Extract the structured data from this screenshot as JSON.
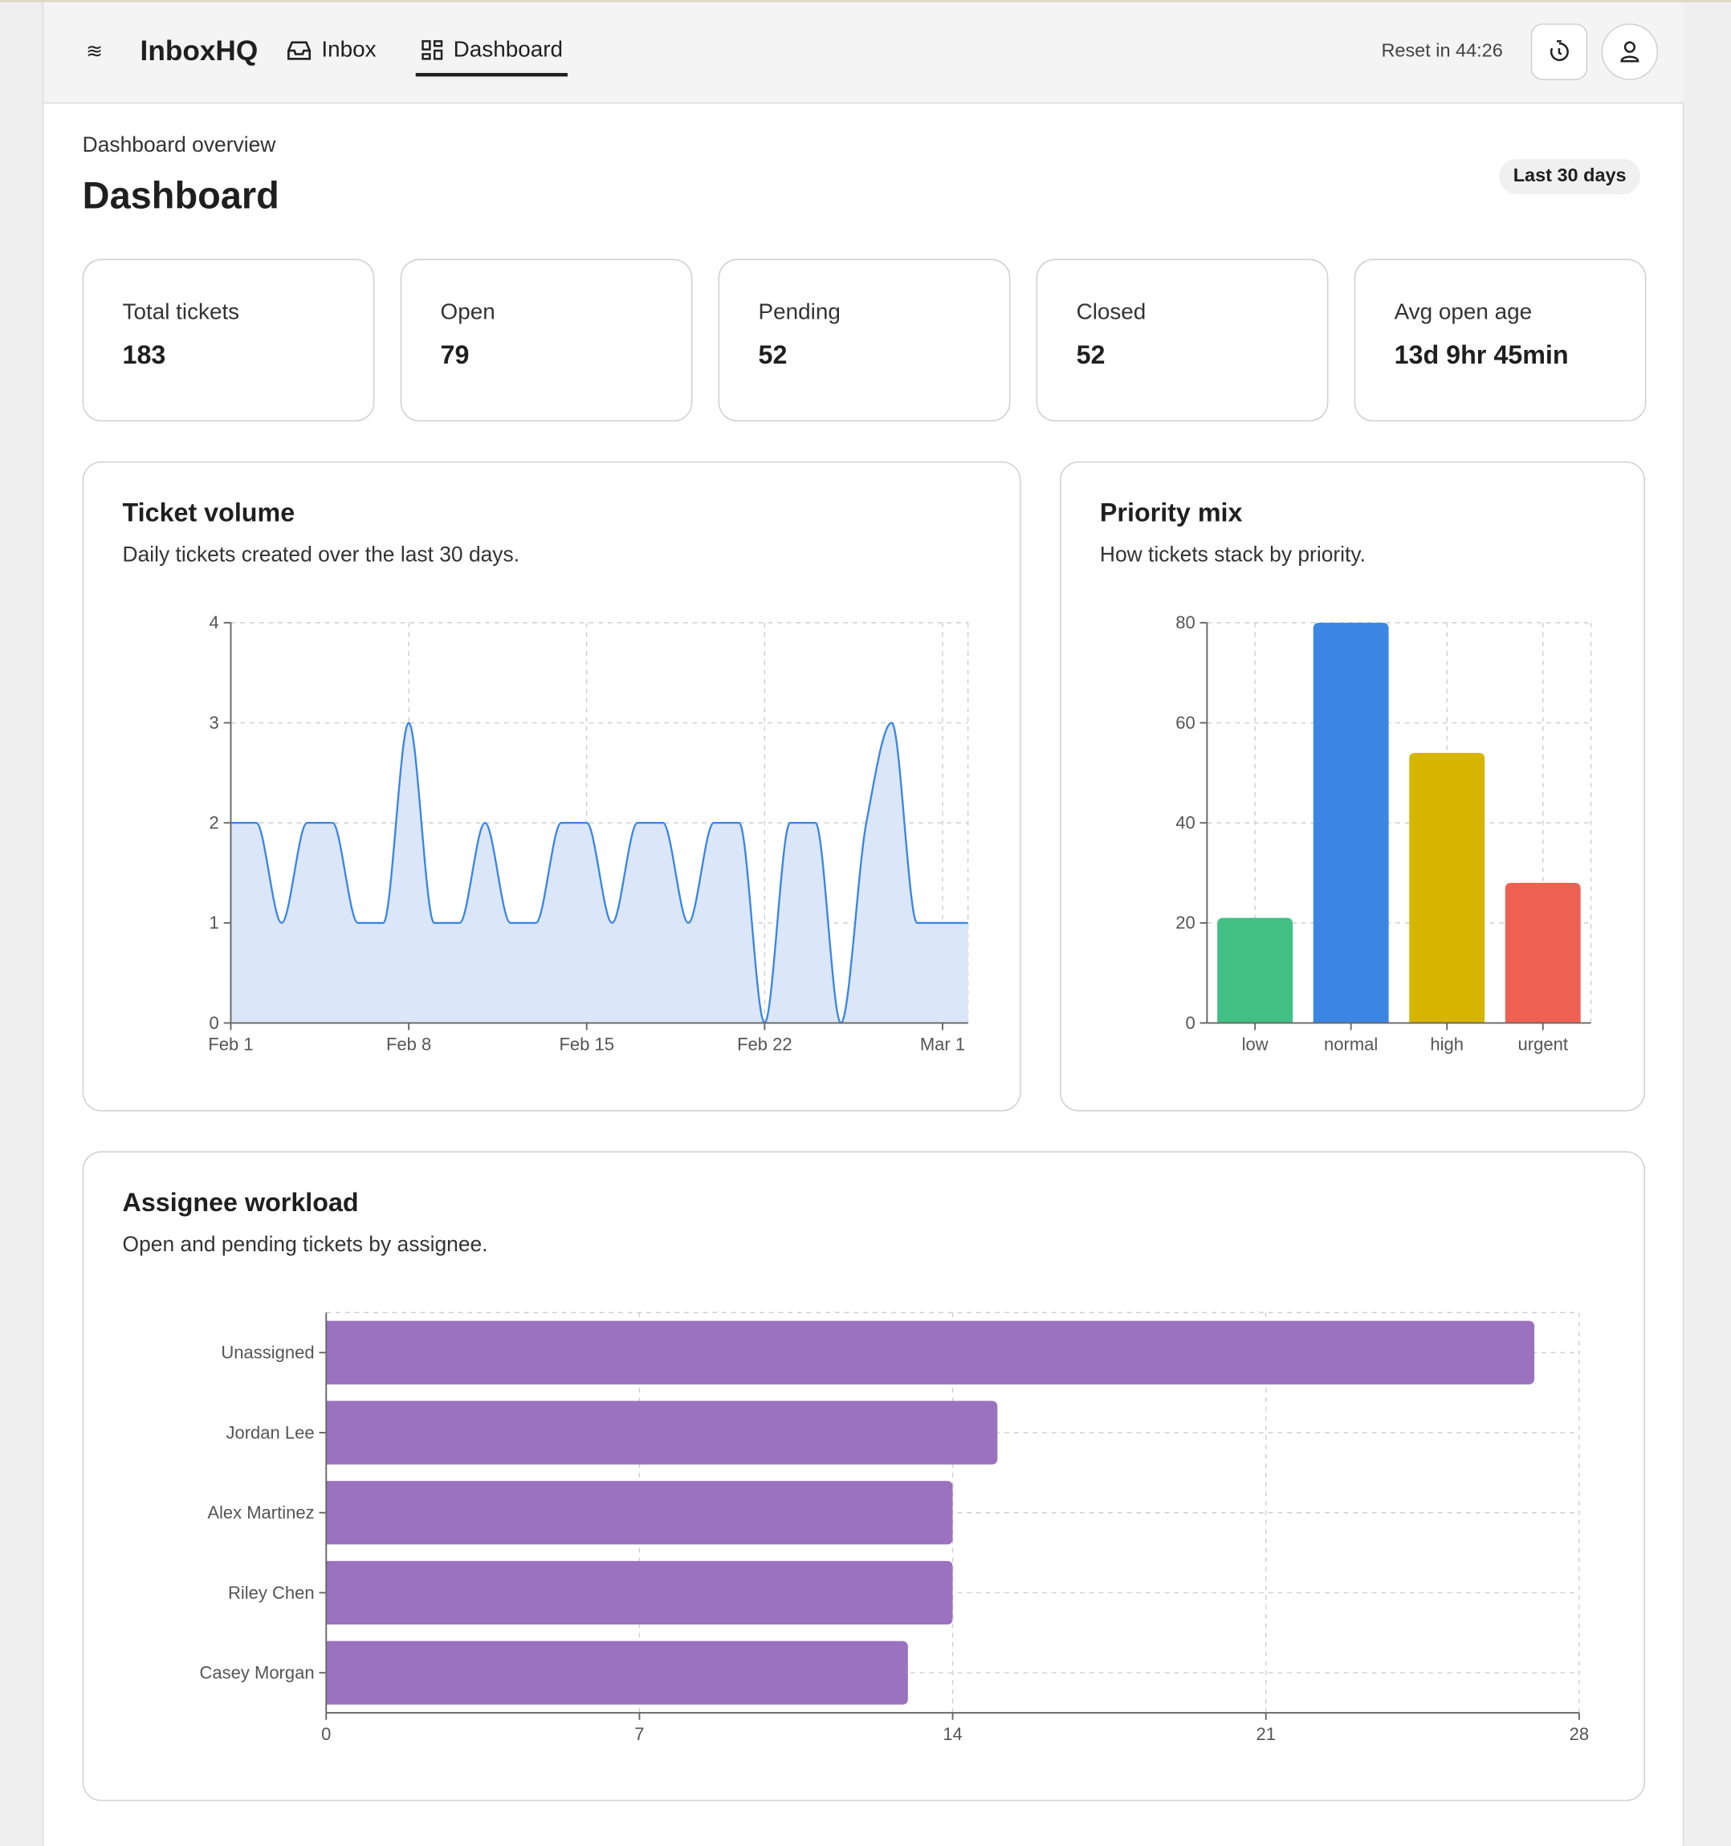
{
  "header": {
    "brand": "InboxHQ",
    "nav": [
      {
        "label": "Inbox",
        "icon": "inbox-icon"
      },
      {
        "label": "Dashboard",
        "icon": "grid-icon",
        "active": true
      }
    ],
    "reset": "Reset in 44:26"
  },
  "page": {
    "subtitle": "Dashboard overview",
    "title": "Dashboard",
    "range": "Last 30 days"
  },
  "stats": [
    {
      "label": "Total tickets",
      "value": "183"
    },
    {
      "label": "Open",
      "value": "79"
    },
    {
      "label": "Pending",
      "value": "52"
    },
    {
      "label": "Closed",
      "value": "52"
    },
    {
      "label": "Avg open age",
      "value": "13d 9hr 45min"
    }
  ],
  "volume": {
    "title": "Ticket volume",
    "desc": "Daily tickets created over the last 30 days."
  },
  "priority": {
    "title": "Priority mix",
    "desc": "How tickets stack by priority."
  },
  "workload": {
    "title": "Assignee workload",
    "desc": "Open and pending tickets by assignee."
  },
  "chart_data": [
    {
      "type": "area",
      "x_tick_labels": [
        "Feb 1",
        "Feb 8",
        "Feb 15",
        "Feb 22",
        "Mar 1"
      ],
      "y_ticks": [
        0,
        1,
        2,
        3,
        4
      ],
      "ylim": [
        0,
        4
      ],
      "grid": true,
      "color": "#3b86e3",
      "x": [
        "Feb 1",
        "Feb 2",
        "Feb 3",
        "Feb 4",
        "Feb 5",
        "Feb 6",
        "Feb 7",
        "Feb 8",
        "Feb 9",
        "Feb 10",
        "Feb 11",
        "Feb 12",
        "Feb 13",
        "Feb 14",
        "Feb 15",
        "Feb 16",
        "Feb 17",
        "Feb 18",
        "Feb 19",
        "Feb 20",
        "Feb 21",
        "Feb 22",
        "Feb 23",
        "Feb 24",
        "Feb 25",
        "Feb 26",
        "Feb 27",
        "Feb 28",
        "Mar 1",
        "Mar 2"
      ],
      "values": [
        2,
        2,
        1,
        2,
        2,
        1,
        1,
        3,
        1,
        1,
        2,
        1,
        1,
        2,
        2,
        1,
        2,
        2,
        1,
        2,
        2,
        0,
        2,
        2,
        0,
        2,
        3,
        1,
        1,
        1
      ]
    },
    {
      "type": "bar",
      "categories": [
        "low",
        "normal",
        "high",
        "urgent"
      ],
      "values": [
        21,
        80,
        54,
        28
      ],
      "colors": [
        "#42bf85",
        "#3b86e3",
        "#d6b500",
        "#ee6152"
      ],
      "y_ticks": [
        0,
        20,
        40,
        60,
        80
      ],
      "ylim": [
        0,
        80
      ],
      "grid": true
    },
    {
      "type": "bar",
      "orientation": "horizontal",
      "categories": [
        "Unassigned",
        "Jordan Lee",
        "Alex Martinez",
        "Riley Chen",
        "Casey Morgan"
      ],
      "values": [
        27,
        15,
        14,
        14,
        13
      ],
      "color": "#9b72bf",
      "x_ticks": [
        0,
        7,
        14,
        21,
        28
      ],
      "xlim": [
        0,
        28
      ],
      "grid": true
    }
  ]
}
